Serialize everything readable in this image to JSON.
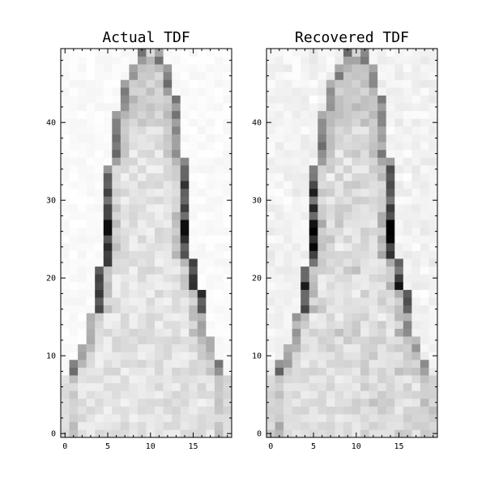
{
  "chart_data": [
    {
      "type": "heatmap",
      "title": "Actual TDF",
      "xlim": [
        -0.5,
        19.5
      ],
      "ylim": [
        -0.5,
        49.5
      ],
      "xticks": [
        0,
        5,
        10,
        15
      ],
      "yticks": [
        0,
        10,
        20,
        30,
        40
      ],
      "colormap": "Greys",
      "grid": false,
      "shape": [
        50,
        20
      ],
      "edges": [
        [
          0,
          19
        ],
        [
          0,
          19
        ],
        [
          0,
          19
        ],
        [
          0,
          19
        ],
        [
          0,
          19
        ],
        [
          0,
          19
        ],
        [
          0,
          19
        ],
        [
          0,
          19
        ],
        [
          1,
          18
        ],
        [
          1,
          18
        ],
        [
          2,
          17
        ],
        [
          2,
          17
        ],
        [
          3,
          17
        ],
        [
          3,
          16
        ],
        [
          3,
          16
        ],
        [
          3,
          16
        ],
        [
          4,
          16
        ],
        [
          4,
          16
        ],
        [
          4,
          16
        ],
        [
          4,
          15
        ],
        [
          4,
          15
        ],
        [
          4,
          15
        ],
        [
          5,
          15
        ],
        [
          5,
          14
        ],
        [
          5,
          14
        ],
        [
          5,
          14
        ],
        [
          5,
          14
        ],
        [
          5,
          14
        ],
        [
          5,
          14
        ],
        [
          5,
          14
        ],
        [
          5,
          14
        ],
        [
          5,
          14
        ],
        [
          5,
          14
        ],
        [
          5,
          14
        ],
        [
          5,
          14
        ],
        [
          6,
          14
        ],
        [
          6,
          13
        ],
        [
          6,
          13
        ],
        [
          6,
          13
        ],
        [
          6,
          13
        ],
        [
          6,
          13
        ],
        [
          6,
          13
        ],
        [
          7,
          13
        ],
        [
          7,
          13
        ],
        [
          7,
          12
        ],
        [
          7,
          12
        ],
        [
          8,
          12
        ],
        [
          8,
          12
        ],
        [
          9,
          11
        ],
        [
          9,
          11
        ]
      ],
      "peak_rows": [
        1,
        1,
        1,
        1,
        1,
        1,
        1,
        1,
        1,
        1,
        0.8,
        0.8,
        1,
        1,
        1,
        1,
        1,
        1,
        1,
        1,
        1,
        1,
        1,
        1,
        1,
        1,
        1,
        1,
        1,
        1,
        1,
        1,
        1,
        1,
        1,
        1,
        1,
        1,
        1,
        1,
        1,
        1,
        1,
        1,
        1,
        1,
        1,
        1,
        1,
        1
      ]
    },
    {
      "type": "heatmap",
      "title": "Recovered TDF",
      "xlim": [
        -0.5,
        19.5
      ],
      "ylim": [
        -0.5,
        49.5
      ],
      "xticks": [
        0,
        5,
        10,
        15
      ],
      "yticks": [
        0,
        10,
        20,
        30,
        40
      ],
      "colormap": "Greys",
      "grid": false,
      "shape": [
        50,
        20
      ]
    }
  ]
}
